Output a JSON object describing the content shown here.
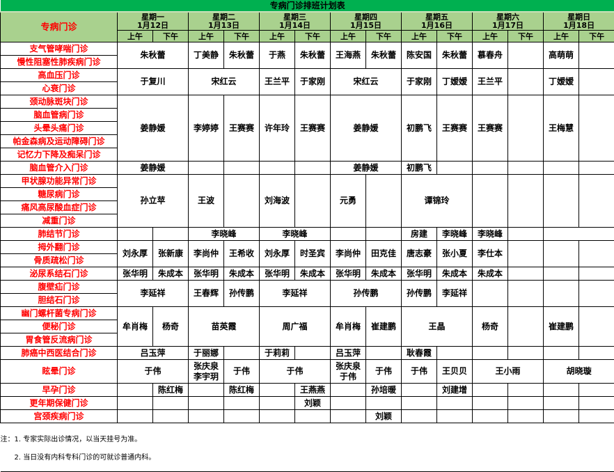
{
  "title": "专病门诊排班计划表",
  "corner_label": "专病门诊",
  "days": [
    {
      "weekday": "星期一",
      "date": "1月12日"
    },
    {
      "weekday": "星期二",
      "date": "1月13日"
    },
    {
      "weekday": "星期三",
      "date": "1月14日"
    },
    {
      "weekday": "星期四",
      "date": "1月15日"
    },
    {
      "weekday": "星期五",
      "date": "1月16日"
    },
    {
      "weekday": "星期六",
      "date": "1月17日"
    },
    {
      "weekday": "星期日",
      "date": "1月18日"
    }
  ],
  "am_label": "上午",
  "pm_label": "下午",
  "colors": {
    "title_bar": "#00b050",
    "header": "#a9d18e",
    "clinic_text": "#ff0000"
  },
  "groups": [
    {
      "clinics": [
        "支气管哮喘门诊",
        "慢性阻塞性肺疾病门诊"
      ],
      "cells": [
        {
          "t": "朱秋蕾",
          "s": 2
        },
        {
          "t": "丁美静"
        },
        {
          "t": "朱秋蕾"
        },
        {
          "t": "于燕"
        },
        {
          "t": "朱秋蕾"
        },
        {
          "t": "王海燕"
        },
        {
          "t": "朱秋蕾"
        },
        {
          "t": "陈安国"
        },
        {
          "t": "朱秋蕾"
        },
        {
          "t": "慕春舟"
        },
        {
          "t": ""
        },
        {
          "t": "高萌萌"
        },
        {
          "t": ""
        }
      ]
    },
    {
      "clinics": [
        "高血压门诊",
        "心衰门诊"
      ],
      "cells": [
        {
          "t": "于复川",
          "s": 2
        },
        {
          "t": "宋红云",
          "s": 2
        },
        {
          "t": "王兰平"
        },
        {
          "t": "于家刚"
        },
        {
          "t": "宋红云",
          "s": 2
        },
        {
          "t": "于家刚"
        },
        {
          "t": "丁嫒嫒"
        },
        {
          "t": "王兰平"
        },
        {
          "t": ""
        },
        {
          "t": "丁嫒嫒"
        },
        {
          "t": ""
        }
      ]
    },
    {
      "clinics": [
        "颈动脉斑块门诊",
        "脑血管病门诊",
        "头晕头痛门诊",
        "帕金森病及运动障碍门诊",
        "记忆力下降及痴呆门诊"
      ],
      "cells": [
        {
          "t": "姜静媛",
          "s": 2
        },
        {
          "t": "李婷婷"
        },
        {
          "t": "王赛赛"
        },
        {
          "t": "许年玲"
        },
        {
          "t": "王赛赛"
        },
        {
          "t": "姜静媛",
          "s": 2
        },
        {
          "t": "初鹏飞"
        },
        {
          "t": "王赛赛"
        },
        {
          "t": "王赛赛"
        },
        {
          "t": ""
        },
        {
          "t": "王梅慧"
        },
        {
          "t": ""
        }
      ]
    },
    {
      "clinics": [
        "脑血管介入门诊"
      ],
      "cells": [
        {
          "t": "姜静媛",
          "s": 2
        },
        {
          "t": ""
        },
        {
          "t": ""
        },
        {
          "t": ""
        },
        {
          "t": ""
        },
        {
          "t": "姜静媛",
          "s": 2
        },
        {
          "t": "初鹏飞"
        },
        {
          "t": ""
        },
        {
          "t": ""
        },
        {
          "t": ""
        },
        {
          "t": ""
        },
        {
          "t": ""
        }
      ]
    },
    {
      "clinics": [
        "甲状腺功能异常门诊",
        "糖尿病门诊",
        "痛风高尿酸血症门诊",
        "减重门诊"
      ],
      "cells": [
        {
          "t": "孙立苹",
          "s": 2
        },
        {
          "t": "王波"
        },
        {
          "t": ""
        },
        {
          "t": "刘海波"
        },
        {
          "t": ""
        },
        {
          "t": "元勇"
        },
        {
          "t": ""
        },
        {
          "t": "谭锦玲",
          "s": 2
        },
        {
          "t": ""
        },
        {
          "t": ""
        },
        {
          "t": ""
        },
        {
          "t": ""
        }
      ]
    },
    {
      "clinics": [
        "肺结节门诊"
      ],
      "cells": [
        {
          "t": ""
        },
        {
          "t": ""
        },
        {
          "t": "李晓峰",
          "s": 2
        },
        {
          "t": "李晓峰",
          "s": 2
        },
        {
          "t": ""
        },
        {
          "t": ""
        },
        {
          "t": "房建"
        },
        {
          "t": "李晓峰"
        },
        {
          "t": "李晓峰"
        },
        {
          "t": ""
        },
        {
          "t": "",
          "s": 2
        }
      ]
    },
    {
      "clinics": [
        "拇外翻门诊",
        "骨质疏松门诊"
      ],
      "cells": [
        {
          "t": "刘永厚"
        },
        {
          "t": "张新康"
        },
        {
          "t": "李尚仲"
        },
        {
          "t": "王希收"
        },
        {
          "t": "刘永厚"
        },
        {
          "t": "时圣宾"
        },
        {
          "t": "李尚仲"
        },
        {
          "t": "田克佳"
        },
        {
          "t": "唐志豪"
        },
        {
          "t": "张小夏"
        },
        {
          "t": "李仕本"
        },
        {
          "t": ""
        },
        {
          "t": ""
        },
        {
          "t": ""
        }
      ]
    },
    {
      "clinics": [
        "泌尿系结石门诊"
      ],
      "cells": [
        {
          "t": "张华明"
        },
        {
          "t": "朱成本"
        },
        {
          "t": "张华明"
        },
        {
          "t": "朱成本"
        },
        {
          "t": "张华明"
        },
        {
          "t": "朱成本"
        },
        {
          "t": "张华明"
        },
        {
          "t": "朱成本"
        },
        {
          "t": "张华明"
        },
        {
          "t": "朱成本"
        },
        {
          "t": "朱成本"
        },
        {
          "t": ""
        },
        {
          "t": ""
        },
        {
          "t": ""
        }
      ]
    },
    {
      "clinics": [
        "腹壁疝门诊",
        "胆结石门诊"
      ],
      "cells": [
        {
          "t": "李延祥",
          "s": 2
        },
        {
          "t": "王春辉"
        },
        {
          "t": "孙传鹏"
        },
        {
          "t": "李延祥",
          "s": 2
        },
        {
          "t": "孙传鹏",
          "s": 2
        },
        {
          "t": "孙传鹏"
        },
        {
          "t": "李延祥"
        },
        {
          "t": ""
        },
        {
          "t": ""
        },
        {
          "t": ""
        },
        {
          "t": ""
        }
      ]
    },
    {
      "clinics": [
        "幽门螺杆菌专病门诊",
        "便秘门诊",
        "胃食管反流病门诊"
      ],
      "cells": [
        {
          "t": "牟肖梅"
        },
        {
          "t": "杨奇"
        },
        {
          "t": "苗英霞",
          "s": 2
        },
        {
          "t": "周广福",
          "s": 2
        },
        {
          "t": "牟肖梅"
        },
        {
          "t": "崔建鹏"
        },
        {
          "t": "王晶",
          "s": 2
        },
        {
          "t": "杨奇"
        },
        {
          "t": ""
        },
        {
          "t": "崔建鹏"
        },
        {
          "t": ""
        }
      ]
    },
    {
      "clinics": [
        "肺癌中西医结合门诊"
      ],
      "cells": [
        {
          "t": "吕玉萍",
          "s": 2
        },
        {
          "t": "于丽娜"
        },
        {
          "t": ""
        },
        {
          "t": "于莉莉"
        },
        {
          "t": ""
        },
        {
          "t": "吕玉萍"
        },
        {
          "t": ""
        },
        {
          "t": "耿春霞"
        },
        {
          "t": ""
        },
        {
          "t": ""
        },
        {
          "t": ""
        },
        {
          "t": ""
        },
        {
          "t": ""
        }
      ]
    },
    {
      "clinics": [
        "眩晕门诊"
      ],
      "tall": true,
      "cells": [
        {
          "t": "于伟",
          "s": 2
        },
        {
          "t": "张庆泉\n李宇玥"
        },
        {
          "t": "于伟"
        },
        {
          "t": "于伟",
          "s": 2
        },
        {
          "t": "张庆泉\n于伟"
        },
        {
          "t": "于伟"
        },
        {
          "t": "于伟"
        },
        {
          "t": "王贝贝"
        },
        {
          "t": "王小雨",
          "s": 2
        },
        {
          "t": "胡晓璇",
          "s": 2
        }
      ]
    },
    {
      "clinics": [
        "早孕门诊"
      ],
      "cells": [
        {
          "t": ""
        },
        {
          "t": "陈红梅"
        },
        {
          "t": ""
        },
        {
          "t": "陈红梅"
        },
        {
          "t": ""
        },
        {
          "t": "王燕燕"
        },
        {
          "t": ""
        },
        {
          "t": "孙培暖"
        },
        {
          "t": ""
        },
        {
          "t": "刘建增"
        },
        {
          "t": ""
        },
        {
          "t": ""
        },
        {
          "t": ""
        },
        {
          "t": ""
        }
      ]
    },
    {
      "clinics": [
        "更年期保健门诊"
      ],
      "cells": [
        {
          "t": ""
        },
        {
          "t": ""
        },
        {
          "t": ""
        },
        {
          "t": ""
        },
        {
          "t": ""
        },
        {
          "t": "刘颖"
        },
        {
          "t": ""
        },
        {
          "t": ""
        },
        {
          "t": ""
        },
        {
          "t": ""
        },
        {
          "t": ""
        },
        {
          "t": ""
        },
        {
          "t": ""
        },
        {
          "t": ""
        }
      ]
    },
    {
      "clinics": [
        "宫颈疾病门诊"
      ],
      "cells": [
        {
          "t": ""
        },
        {
          "t": ""
        },
        {
          "t": ""
        },
        {
          "t": ""
        },
        {
          "t": ""
        },
        {
          "t": ""
        },
        {
          "t": ""
        },
        {
          "t": "刘颖"
        },
        {
          "t": ""
        },
        {
          "t": ""
        },
        {
          "t": ""
        },
        {
          "t": ""
        },
        {
          "t": ""
        },
        {
          "t": ""
        }
      ]
    }
  ],
  "notes": {
    "line1": "注：1. 专家实际出诊情况，以当天挂号为准。",
    "line2": "2. 当日没有内科专科门诊的可就诊普通内科。"
  }
}
